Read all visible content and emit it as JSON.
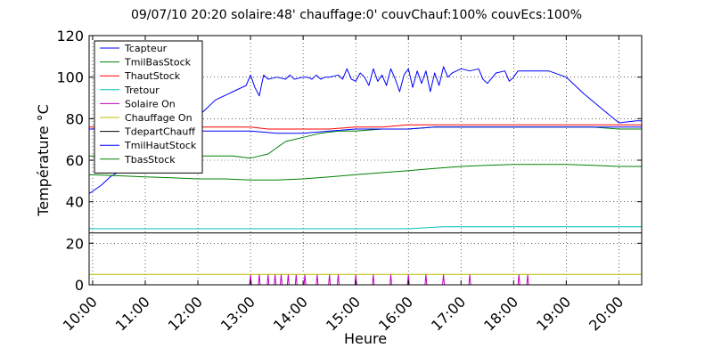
{
  "chart_data": {
    "type": "line",
    "title": "09/07/10 20:20  solaire:48'  chauffage:0'  couvChauf:100%  couvEcs:100%",
    "xlabel": "Heure",
    "ylabel": "Température °C",
    "xlim": [
      "09:56",
      "20:26"
    ],
    "ylim": [
      0,
      120
    ],
    "yticks": [
      0,
      20,
      40,
      60,
      80,
      100,
      120
    ],
    "xticks": [
      "10:00",
      "11:00",
      "12:00",
      "13:00",
      "14:00",
      "15:00",
      "16:00",
      "17:00",
      "18:00",
      "19:00",
      "20:00"
    ],
    "grid": true,
    "legend": "upper-left",
    "series": [
      {
        "name": "Tcapteur",
        "color": "#0000ff",
        "x": [
          "09:56",
          "10:00",
          "10:10",
          "10:20",
          "10:40",
          "11:00",
          "11:20",
          "11:40",
          "12:00",
          "12:10",
          "12:20",
          "12:40",
          "12:55",
          "13:00",
          "13:05",
          "13:10",
          "13:15",
          "13:20",
          "13:30",
          "13:40",
          "13:45",
          "13:50",
          "14:00",
          "14:05",
          "14:10",
          "14:15",
          "14:20",
          "14:25",
          "14:30",
          "14:40",
          "14:45",
          "14:50",
          "14:55",
          "15:00",
          "15:05",
          "15:10",
          "15:15",
          "15:20",
          "15:25",
          "15:30",
          "15:35",
          "15:40",
          "15:45",
          "15:50",
          "15:55",
          "16:00",
          "16:05",
          "16:10",
          "16:15",
          "16:20",
          "16:25",
          "16:30",
          "16:35",
          "16:40",
          "16:45",
          "16:50",
          "17:00",
          "17:10",
          "17:20",
          "17:25",
          "17:30",
          "17:40",
          "17:50",
          "17:55",
          "18:00",
          "18:05",
          "18:10",
          "18:20",
          "18:40",
          "19:00",
          "19:20",
          "19:40",
          "20:00",
          "20:20",
          "20:26"
        ],
        "y": [
          44,
          45,
          48,
          52,
          57,
          62,
          67,
          74,
          81,
          85,
          89,
          93,
          96,
          101,
          95,
          91,
          101,
          99,
          100,
          99,
          101,
          99,
          100,
          100,
          99,
          101,
          99,
          100,
          100,
          101,
          99,
          104,
          99,
          98,
          102,
          100,
          96,
          104,
          98,
          101,
          96,
          104,
          99,
          93,
          101,
          104,
          95,
          103,
          97,
          103,
          93,
          102,
          96,
          105,
          100,
          102,
          104,
          103,
          104,
          99,
          97,
          102,
          103,
          98,
          100,
          103,
          103,
          103,
          103,
          100,
          92,
          85,
          78,
          79,
          79
        ]
      },
      {
        "name": "TmilBasStock",
        "color": "#008000",
        "x": [
          "09:56",
          "10:20",
          "11:00",
          "11:40",
          "12:00",
          "12:40",
          "13:00",
          "13:10",
          "13:20",
          "13:30",
          "13:40",
          "14:00",
          "14:20",
          "14:40",
          "15:00",
          "15:30",
          "16:00",
          "16:30",
          "17:00",
          "17:30",
          "18:00",
          "18:30",
          "19:00",
          "19:30",
          "20:00",
          "20:26"
        ],
        "y": [
          62,
          62,
          62,
          62,
          62,
          62,
          61,
          62,
          63,
          66,
          69,
          71,
          73,
          74,
          74,
          75,
          75,
          76,
          76,
          76,
          76,
          76,
          76,
          76,
          75,
          75
        ]
      },
      {
        "name": "ThautStock",
        "color": "#ff0000",
        "x": [
          "09:56",
          "11:00",
          "12:00",
          "13:00",
          "13:20",
          "14:00",
          "14:30",
          "15:00",
          "15:30",
          "16:00",
          "16:30",
          "17:00",
          "17:30",
          "18:00",
          "18:30",
          "19:00",
          "20:00",
          "20:26"
        ],
        "y": [
          76,
          76,
          76,
          76,
          75,
          75,
          75,
          76,
          76,
          77,
          77,
          77,
          77,
          77,
          77,
          77,
          77,
          77
        ]
      },
      {
        "name": "Tretour",
        "color": "#00bfbf",
        "x": [
          "09:56",
          "11:00",
          "12:00",
          "13:00",
          "14:00",
          "15:00",
          "16:00",
          "16:40",
          "17:00",
          "18:00",
          "19:00",
          "20:00",
          "20:26"
        ],
        "y": [
          27,
          27,
          27,
          27,
          27,
          27,
          27,
          28,
          28,
          28,
          28,
          28,
          28
        ]
      },
      {
        "name": "Solaire On",
        "color": "#bf00bf",
        "x": [
          "09:56",
          "12:59",
          "13:00",
          "13:01",
          "13:09",
          "13:10",
          "13:11",
          "13:19",
          "13:20",
          "13:21",
          "13:27",
          "13:28",
          "13:29",
          "13:34",
          "13:35",
          "13:36",
          "13:42",
          "13:43",
          "13:44",
          "13:51",
          "13:52",
          "13:53",
          "14:01",
          "14:02",
          "14:03",
          "14:15",
          "14:16",
          "14:17",
          "14:29",
          "14:30",
          "14:31",
          "14:39",
          "14:40",
          "14:41",
          "14:59",
          "15:00",
          "15:01",
          "15:19",
          "15:20",
          "15:21",
          "15:39",
          "15:40",
          "15:41",
          "15:59",
          "16:00",
          "16:01",
          "16:19",
          "16:20",
          "16:21",
          "16:39",
          "16:40",
          "16:41",
          "17:09",
          "17:10",
          "17:11",
          "18:05",
          "18:06",
          "18:07",
          "18:15",
          "18:16",
          "18:17",
          "20:26"
        ],
        "y": [
          0,
          0,
          5,
          0,
          0,
          5,
          0,
          0,
          5,
          0,
          0,
          5,
          0,
          0,
          5,
          0,
          0,
          5,
          0,
          0,
          5,
          0,
          0,
          5,
          0,
          0,
          5,
          0,
          0,
          5,
          0,
          0,
          5,
          0,
          0,
          5,
          0,
          0,
          5,
          0,
          0,
          5,
          0,
          0,
          5,
          0,
          0,
          5,
          0,
          0,
          5,
          0,
          0,
          5,
          0,
          0,
          5,
          0,
          0,
          5,
          0,
          0
        ]
      },
      {
        "name": "Chauffage On",
        "color": "#bfbf00",
        "x": [
          "09:56",
          "20:26"
        ],
        "y": [
          5,
          5
        ]
      },
      {
        "name": "TdepartChauff",
        "color": "#000000",
        "x": [
          "09:56",
          "12:00",
          "14:00",
          "16:00",
          "18:00",
          "20:26"
        ],
        "y": [
          25,
          25,
          25,
          25,
          25,
          25
        ]
      },
      {
        "name": "TmilHautStock",
        "color": "#0000ff",
        "x": [
          "09:56",
          "11:00",
          "12:00",
          "13:00",
          "13:30",
          "14:00",
          "14:30",
          "15:00",
          "15:30",
          "16:00",
          "16:30",
          "17:00",
          "17:30",
          "18:00",
          "18:30",
          "19:00",
          "20:00",
          "20:26"
        ],
        "y": [
          75,
          75,
          74,
          74,
          73,
          73,
          74,
          75,
          75,
          75,
          76,
          76,
          76,
          76,
          76,
          76,
          76,
          76
        ]
      },
      {
        "name": "TbasStock",
        "color": "#008000",
        "x": [
          "09:56",
          "10:30",
          "11:00",
          "11:30",
          "12:00",
          "12:30",
          "13:00",
          "13:30",
          "14:00",
          "14:30",
          "15:00",
          "15:30",
          "16:00",
          "16:30",
          "17:00",
          "17:30",
          "18:00",
          "18:30",
          "19:00",
          "19:30",
          "20:00",
          "20:26"
        ],
        "y": [
          53,
          52.5,
          52,
          51.5,
          51,
          51,
          50.5,
          50.5,
          51,
          52,
          53,
          54,
          55,
          56,
          57,
          57.5,
          58,
          58,
          58,
          57.5,
          57,
          57
        ]
      }
    ]
  }
}
